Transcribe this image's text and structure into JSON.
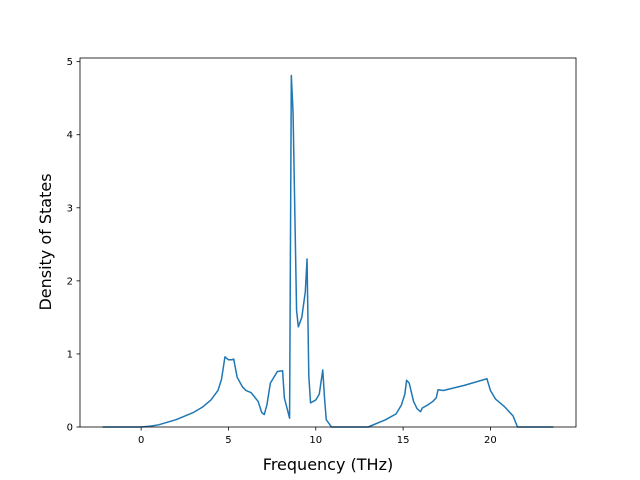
{
  "chart_data": {
    "type": "line",
    "x_label": "Frequency (THz)",
    "y_label": "Density of States",
    "x": [
      -2.2,
      0,
      0.5,
      1,
      2,
      3,
      3.5,
      4,
      4.4,
      4.6,
      4.8,
      5.0,
      5.2,
      5.3,
      5.5,
      5.8,
      6.0,
      6.3,
      6.7,
      6.9,
      7.05,
      7.2,
      7.4,
      7.8,
      8.1,
      8.2,
      8.5,
      8.6,
      8.7,
      8.9,
      9.0,
      9.2,
      9.4,
      9.5,
      9.6,
      9.7,
      10.0,
      10.2,
      10.4,
      10.5,
      10.6,
      10.9,
      13.0,
      14.0,
      14.6,
      14.9,
      15.1,
      15.2,
      15.35,
      15.6,
      15.8,
      16.0,
      16.1,
      16.4,
      16.7,
      16.9,
      17.0,
      17.3,
      18.5,
      19.8,
      20.0,
      20.3,
      20.8,
      21.3,
      21.55,
      23.6
    ],
    "series": [
      {
        "color": "#1f77b4",
        "values": [
          0,
          0,
          0.01,
          0.03,
          0.1,
          0.2,
          0.27,
          0.37,
          0.5,
          0.65,
          0.96,
          0.92,
          0.92,
          0.93,
          0.68,
          0.55,
          0.5,
          0.47,
          0.35,
          0.2,
          0.17,
          0.3,
          0.6,
          0.76,
          0.77,
          0.4,
          0.12,
          4.81,
          4.3,
          1.6,
          1.37,
          1.5,
          1.85,
          2.3,
          0.7,
          0.33,
          0.37,
          0.45,
          0.78,
          0.4,
          0.1,
          0,
          0,
          0.1,
          0.18,
          0.3,
          0.45,
          0.64,
          0.6,
          0.35,
          0.25,
          0.21,
          0.26,
          0.3,
          0.35,
          0.4,
          0.51,
          0.5,
          0.57,
          0.66,
          0.5,
          0.38,
          0.28,
          0.15,
          0,
          0
        ]
      }
    ],
    "xlim": [
      -3.5,
      24.9
    ],
    "ylim": [
      0,
      5.05
    ],
    "xticks": [
      0,
      5,
      10,
      15,
      20
    ],
    "yticks": [
      0,
      1,
      2,
      3,
      4,
      5
    ]
  }
}
